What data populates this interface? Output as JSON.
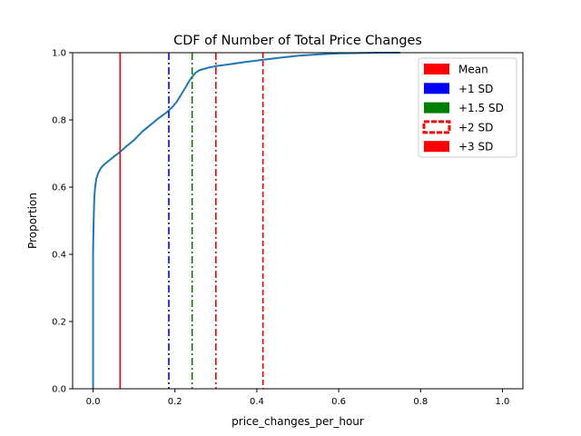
{
  "chart_data": {
    "type": "line",
    "title": "CDF of Number of Total Price Changes",
    "xlabel": "price_changes_per_hour",
    "ylabel": "Proportion",
    "xlim": [
      -0.05,
      1.05
    ],
    "ylim": [
      0,
      1.0
    ],
    "xticks": [
      0.0,
      0.2,
      0.4,
      0.6,
      0.8,
      1.0
    ],
    "xtick_labels": [
      "0.0",
      "0.2",
      "0.4",
      "0.6",
      "0.8",
      "1.0"
    ],
    "yticks": [
      0.0,
      0.2,
      0.4,
      0.6,
      0.8,
      1.0
    ],
    "ytick_labels": [
      "0.0",
      "0.2",
      "0.4",
      "0.6",
      "0.8",
      "1.0"
    ],
    "grid": false,
    "legend_position": "top-right",
    "series": [
      {
        "color": "#1f77b4",
        "x": [
          0.0,
          0.0,
          0.001,
          0.002,
          0.003,
          0.005,
          0.008,
          0.012,
          0.018,
          0.025,
          0.035,
          0.05,
          0.066,
          0.08,
          0.1,
          0.12,
          0.14,
          0.16,
          0.175,
          0.185,
          0.195,
          0.205,
          0.215,
          0.225,
          0.232,
          0.24,
          0.25,
          0.26,
          0.28,
          0.3,
          0.33,
          0.37,
          0.41,
          0.45,
          0.5,
          0.55,
          0.6,
          0.65,
          0.7,
          0.75
        ],
        "y": [
          0.0,
          0.41,
          0.48,
          0.53,
          0.57,
          0.6,
          0.625,
          0.64,
          0.655,
          0.665,
          0.675,
          0.69,
          0.705,
          0.72,
          0.74,
          0.765,
          0.785,
          0.805,
          0.818,
          0.828,
          0.84,
          0.855,
          0.875,
          0.895,
          0.91,
          0.925,
          0.94,
          0.948,
          0.955,
          0.96,
          0.965,
          0.972,
          0.978,
          0.984,
          0.991,
          0.995,
          0.998,
          0.999,
          1.0,
          1.0
        ]
      }
    ],
    "vlines": [
      {
        "label": "Mean",
        "x": 0.066,
        "color": "#ff0000",
        "style": "solid"
      },
      {
        "label": "+1 SD",
        "x": 0.185,
        "color": "#0000ff",
        "style": "dashdot"
      },
      {
        "label": "+1.5 SD",
        "x": 0.242,
        "color": "#008000",
        "style": "dashdot"
      },
      {
        "label": "+2 SD",
        "x": 0.3,
        "color": "#ff0000",
        "style": "dashdot"
      },
      {
        "label": "+3 SD",
        "x": 0.415,
        "color": "#ff0000",
        "style": "dashed"
      }
    ],
    "legend": [
      {
        "label": "Mean",
        "color": "#ff0000",
        "style": "solid"
      },
      {
        "label": "+1 SD",
        "color": "#0000ff",
        "style": "solid"
      },
      {
        "label": "+1.5 SD",
        "color": "#008000",
        "style": "solid"
      },
      {
        "label": "+2 SD",
        "color": "#ff0000",
        "style": "dashed"
      },
      {
        "label": "+3 SD",
        "color": "#ff0000",
        "style": "solid"
      }
    ]
  }
}
